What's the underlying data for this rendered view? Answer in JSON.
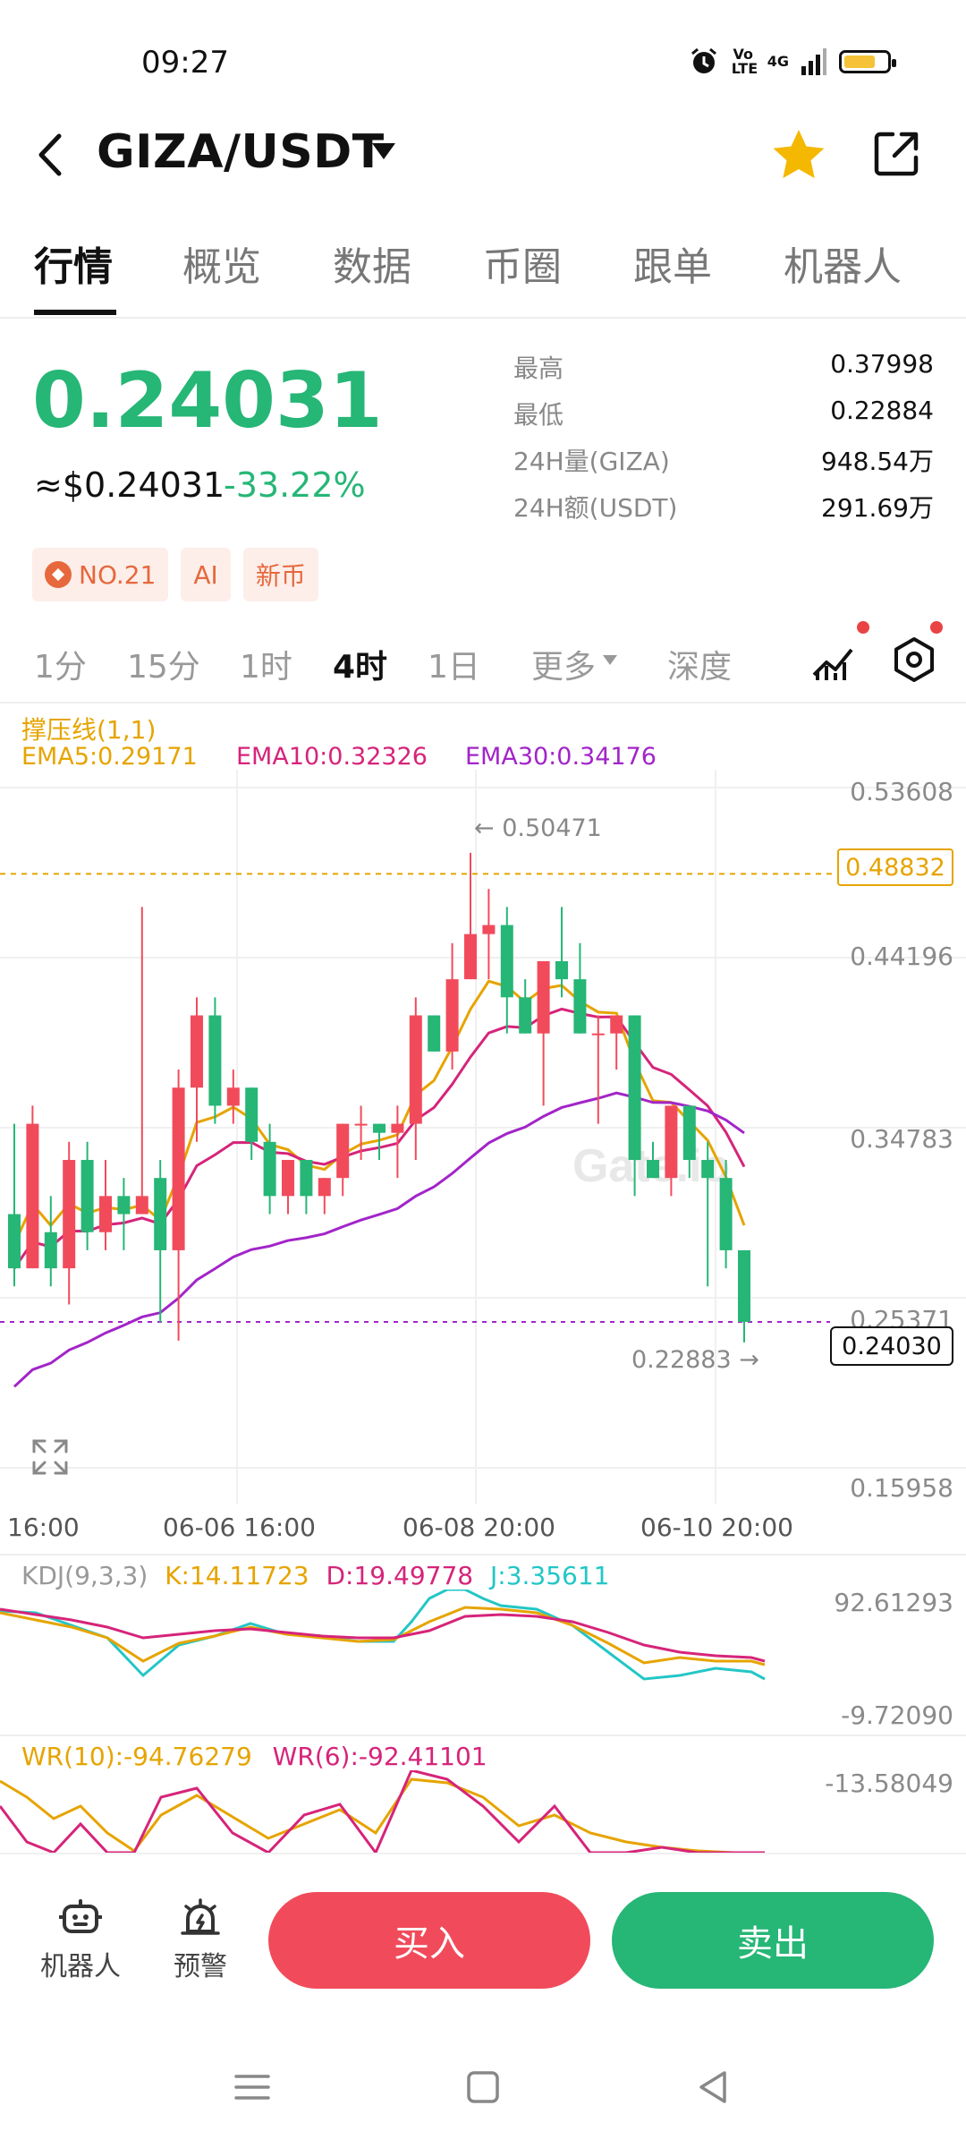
{
  "status_bar": {
    "time": "09:27",
    "volte": "Vo LTE",
    "network": "4G"
  },
  "header": {
    "pair": "GIZA/USDT"
  },
  "tabs": [
    "行情",
    "概览",
    "数据",
    "币圈",
    "跟单",
    "机器人"
  ],
  "price": {
    "last": "0.24031",
    "usd": "≈$0.24031",
    "change": "-33.22%",
    "stats": [
      {
        "label": "最高",
        "value": "0.37998"
      },
      {
        "label": "最低",
        "value": "0.22884"
      },
      {
        "label": "24H量(GIZA)",
        "value": "948.54万"
      },
      {
        "label": "24H额(USDT)",
        "value": "291.69万"
      }
    ],
    "badges": [
      "NO.21",
      "AI",
      "新币"
    ]
  },
  "timeframes": [
    "1分",
    "15分",
    "1时",
    "4时",
    "1日",
    "更多",
    "深度"
  ],
  "active_timeframe": "4时",
  "chart": {
    "indicator_label": "撑压线(1,1)",
    "ema5": "EMA5:0.29171",
    "ema10": "EMA10:0.32326",
    "ema30": "EMA30:0.34176",
    "y_labels": [
      "0.53608",
      "0.44196",
      "0.34783",
      "0.25371",
      "0.15958"
    ],
    "x_labels": [
      "16:00",
      "06-06 16:00",
      "06-08 20:00",
      "06-10 20:00"
    ],
    "high_marker": "← 0.50471",
    "low_marker": "0.22883 →",
    "resistance": "0.48832",
    "current": "0.24030",
    "watermark": "Gate.io",
    "colors": {
      "up": "#f14b5b",
      "down": "#26b676",
      "ema5": "#e6a400",
      "ema10": "#d6247a",
      "ema30": "#a225c8"
    }
  },
  "chart_data": {
    "type": "candlestick",
    "ylim": [
      0.15958,
      0.53608
    ],
    "candles": [
      [
        0.3,
        0.35,
        0.26,
        0.27
      ],
      [
        0.27,
        0.36,
        0.27,
        0.35
      ],
      [
        0.29,
        0.31,
        0.26,
        0.27
      ],
      [
        0.27,
        0.34,
        0.25,
        0.33
      ],
      [
        0.33,
        0.34,
        0.28,
        0.29
      ],
      [
        0.29,
        0.33,
        0.28,
        0.31
      ],
      [
        0.31,
        0.32,
        0.28,
        0.3
      ],
      [
        0.3,
        0.47,
        0.3,
        0.31
      ],
      [
        0.32,
        0.33,
        0.24,
        0.28
      ],
      [
        0.28,
        0.38,
        0.23,
        0.37
      ],
      [
        0.37,
        0.42,
        0.34,
        0.41
      ],
      [
        0.41,
        0.42,
        0.35,
        0.36
      ],
      [
        0.36,
        0.38,
        0.35,
        0.37
      ],
      [
        0.37,
        0.37,
        0.33,
        0.34
      ],
      [
        0.34,
        0.35,
        0.3,
        0.31
      ],
      [
        0.31,
        0.33,
        0.3,
        0.33
      ],
      [
        0.33,
        0.33,
        0.3,
        0.31
      ],
      [
        0.31,
        0.32,
        0.3,
        0.32
      ],
      [
        0.32,
        0.35,
        0.31,
        0.35
      ],
      [
        0.35,
        0.36,
        0.33,
        0.35
      ],
      [
        0.35,
        0.35,
        0.33,
        0.345
      ],
      [
        0.345,
        0.36,
        0.32,
        0.35
      ],
      [
        0.35,
        0.42,
        0.33,
        0.41
      ],
      [
        0.41,
        0.41,
        0.39,
        0.39
      ],
      [
        0.39,
        0.45,
        0.38,
        0.43
      ],
      [
        0.43,
        0.5,
        0.43,
        0.455
      ],
      [
        0.455,
        0.48,
        0.43,
        0.46
      ],
      [
        0.46,
        0.47,
        0.4,
        0.42
      ],
      [
        0.42,
        0.43,
        0.4,
        0.4
      ],
      [
        0.4,
        0.44,
        0.36,
        0.44
      ],
      [
        0.44,
        0.47,
        0.42,
        0.43
      ],
      [
        0.43,
        0.45,
        0.4,
        0.4
      ],
      [
        0.4,
        0.41,
        0.35,
        0.4
      ],
      [
        0.4,
        0.41,
        0.38,
        0.41
      ],
      [
        0.41,
        0.41,
        0.31,
        0.33
      ],
      [
        0.33,
        0.34,
        0.32,
        0.32
      ],
      [
        0.32,
        0.36,
        0.31,
        0.36
      ],
      [
        0.36,
        0.36,
        0.32,
        0.33
      ],
      [
        0.33,
        0.34,
        0.26,
        0.32
      ],
      [
        0.32,
        0.33,
        0.27,
        0.28
      ],
      [
        0.28,
        0.28,
        0.229,
        0.2403
      ]
    ],
    "kdj": {
      "label": "KDJ(9,3,3)",
      "k": "K:14.11723",
      "d": "D:19.49778",
      "j": "J:3.35611",
      "ymax": "92.61293",
      "ymin": "-9.72090"
    },
    "wr": {
      "label": "WR(10):-94.76279",
      "label6": "WR(6):-92.41101",
      "ymax": "-13.58049"
    }
  },
  "bottom_bar": {
    "robot": "机器人",
    "alert": "预警",
    "buy": "买入",
    "sell": "卖出"
  }
}
